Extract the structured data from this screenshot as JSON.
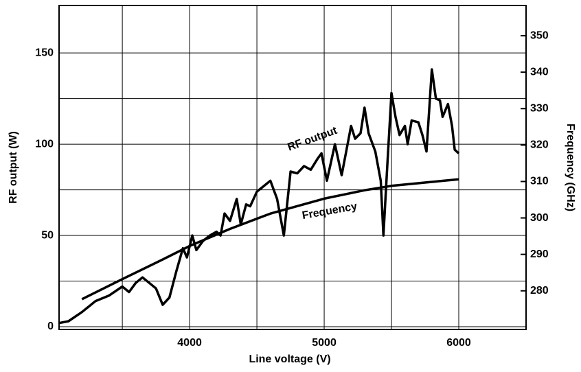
{
  "chart_data": {
    "type": "line",
    "x_label": "Line voltage (V)",
    "y_label": "RF output (W)",
    "y2_label": "Frequency (GHz)",
    "annotations": [
      "RF output",
      "Frequency"
    ],
    "xlim": [
      3030,
      6500
    ],
    "xticks": [
      4000,
      5000,
      6000
    ],
    "xgrid": [
      3500,
      4500,
      5500
    ],
    "ylim": [
      -1.5,
      176
    ],
    "yticks": [
      0,
      50,
      100,
      150
    ],
    "ygrid": [
      25,
      75,
      125
    ],
    "y2lim": [
      269.4,
      358.3
    ],
    "y2ticks": [
      280,
      290,
      300,
      310,
      320,
      330,
      340,
      350
    ],
    "grid": true,
    "series": [
      {
        "name": "RF output",
        "color": "#000000",
        "x": [
          3030,
          3100,
          3200,
          3300,
          3400,
          3500,
          3550,
          3600,
          3650,
          3700,
          3750,
          3800,
          3850,
          3900,
          3950,
          3980,
          4020,
          4050,
          4100,
          4150,
          4200,
          4230,
          4260,
          4300,
          4350,
          4380,
          4420,
          4450,
          4500,
          4600,
          4650,
          4700,
          4750,
          4800,
          4850,
          4900,
          4950,
          4980,
          5020,
          5080,
          5130,
          5200,
          5230,
          5270,
          5300,
          5330,
          5380,
          5420,
          5440,
          5470,
          5500,
          5530,
          5560,
          5600,
          5620,
          5650,
          5700,
          5730,
          5760,
          5800,
          5830,
          5860,
          5880,
          5920,
          5950,
          5970,
          6000
        ],
        "values": [
          2,
          3,
          8,
          14,
          17,
          22,
          19,
          24,
          27,
          24,
          21,
          12,
          16,
          30,
          43,
          38,
          50,
          42,
          47,
          50,
          52,
          50,
          62,
          58,
          70,
          56,
          67,
          66,
          74,
          80,
          70,
          50,
          85,
          84,
          88,
          86,
          92,
          95,
          80,
          100,
          83,
          110,
          103,
          106,
          120,
          106,
          96,
          80,
          50,
          90,
          128,
          115,
          105,
          110,
          100,
          113,
          112,
          105,
          96,
          141,
          125,
          124,
          115,
          122,
          110,
          97,
          95
        ]
      },
      {
        "name": "Frequency",
        "color": "#000000",
        "axis": "y2",
        "x": [
          3200,
          3500,
          3800,
          4000,
          4300,
          4600,
          5000,
          5300,
          5500,
          5800,
          6000
        ],
        "values": [
          277.7,
          283.2,
          288.6,
          292.3,
          297.0,
          301.2,
          305.3,
          307.6,
          308.8,
          309.9,
          310.6
        ]
      }
    ]
  }
}
